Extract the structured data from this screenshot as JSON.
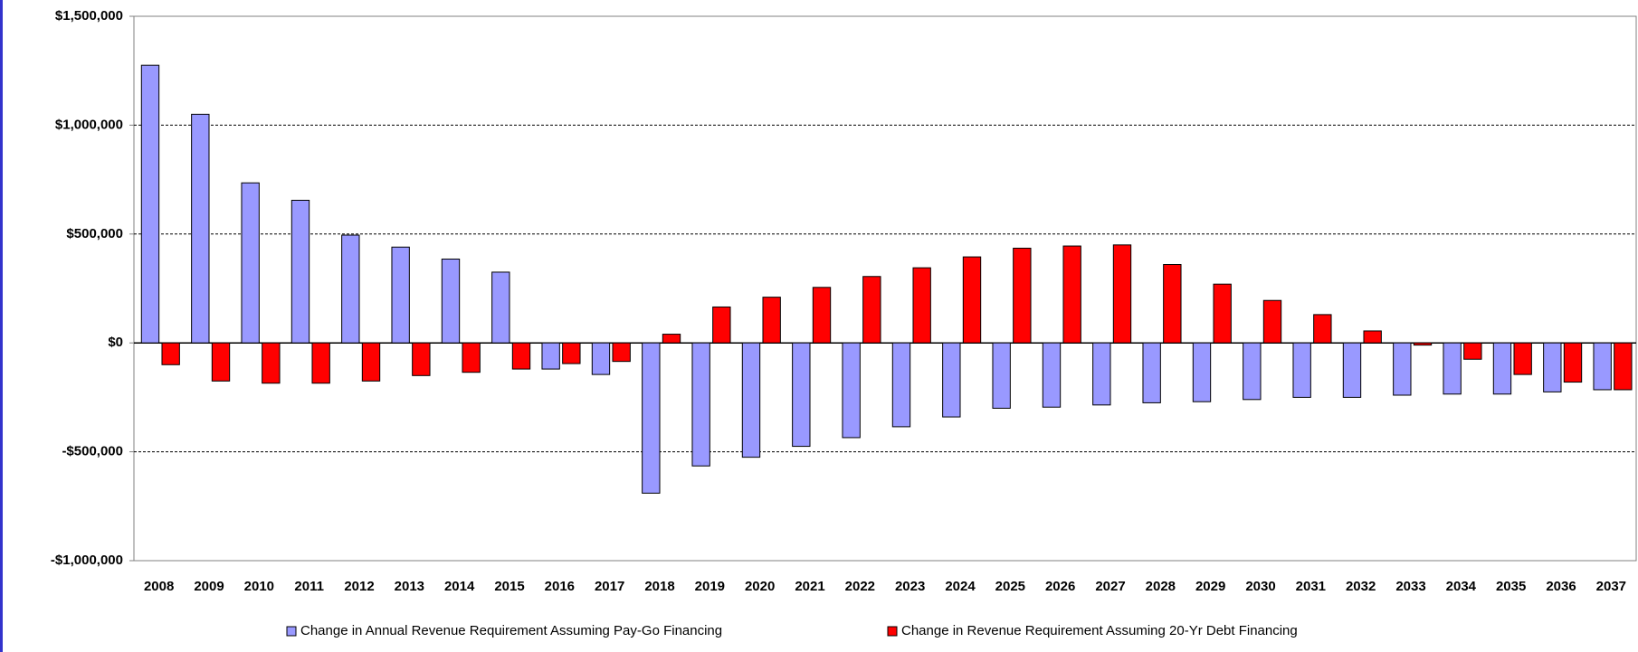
{
  "chart_data": {
    "type": "bar",
    "categories": [
      "2008",
      "2009",
      "2010",
      "2011",
      "2012",
      "2013",
      "2014",
      "2015",
      "2016",
      "2017",
      "2018",
      "2019",
      "2020",
      "2021",
      "2022",
      "2023",
      "2024",
      "2025",
      "2026",
      "2027",
      "2028",
      "2029",
      "2030",
      "2031",
      "2032",
      "2033",
      "2034",
      "2035",
      "2036",
      "2037"
    ],
    "series": [
      {
        "name": "Change in Annual Revenue Requirement Assuming Pay-Go Financing",
        "color": "#9999ff",
        "values": [
          1275000,
          1050000,
          735000,
          655000,
          495000,
          440000,
          385000,
          325000,
          -120000,
          -145000,
          -690000,
          -565000,
          -525000,
          -475000,
          -435000,
          -385000,
          -340000,
          -300000,
          -295000,
          -285000,
          -275000,
          -270000,
          -260000,
          -250000,
          -250000,
          -240000,
          -235000,
          -235000,
          -225000,
          -215000
        ]
      },
      {
        "name": "Change in Revenue Requirement Assuming 20-Yr Debt Financing",
        "color": "#ff0000",
        "values": [
          -100000,
          -175000,
          -185000,
          -185000,
          -175000,
          -150000,
          -135000,
          -120000,
          -95000,
          -85000,
          40000,
          165000,
          210000,
          255000,
          305000,
          345000,
          395000,
          435000,
          445000,
          450000,
          360000,
          270000,
          195000,
          130000,
          55000,
          -10000,
          -75000,
          -145000,
          -180000,
          -215000
        ]
      }
    ],
    "ylim": [
      -1000000,
      1500000
    ],
    "yticks": [
      {
        "value": -1000000,
        "label": "-$1,000,000"
      },
      {
        "value": -500000,
        "label": "-$500,000"
      },
      {
        "value": 0,
        "label": "$0"
      },
      {
        "value": 500000,
        "label": "$500,000"
      },
      {
        "value": 1000000,
        "label": "$1,000,000"
      },
      {
        "value": 1500000,
        "label": "$1,500,000"
      }
    ],
    "grid": true,
    "legend": "bottom"
  }
}
